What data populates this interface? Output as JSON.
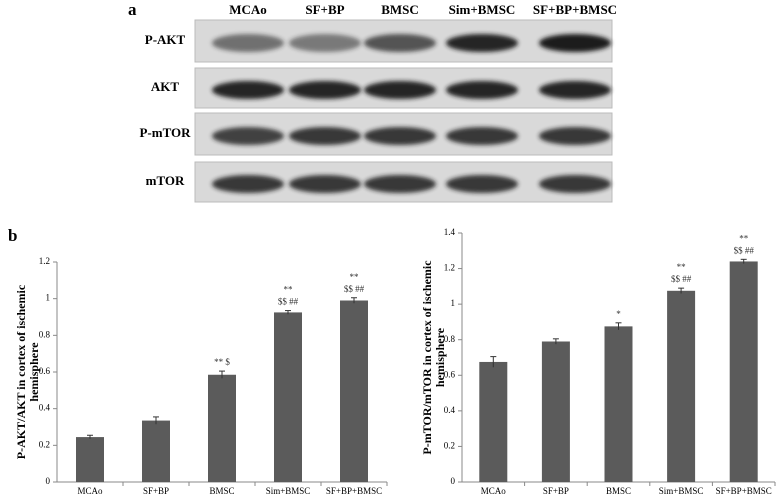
{
  "blot": {
    "panel_label": "a",
    "lanes": [
      "MCAo",
      "SF+BP",
      "BMSC",
      "Sim+BMSC",
      "SF+BP+BMSC"
    ],
    "rows": [
      "P-AKT",
      "AKT",
      "P-mTOR",
      "mTOR"
    ]
  },
  "chart_data": [
    {
      "type": "bar",
      "panel_label": "b",
      "y_label": [
        "P-AKT/AKT in cortex of  ischemic",
        "hemisphere"
      ],
      "categories": [
        "MCAo",
        "SF+BP",
        "BMSC",
        "Sim+BMSC",
        "SF+BP+BMSC"
      ],
      "values": [
        0.245,
        0.335,
        0.585,
        0.925,
        0.99
      ],
      "errors": [
        0.01,
        0.02,
        0.02,
        0.01,
        0.015
      ],
      "annotations": [
        null,
        null,
        [
          "** $"
        ],
        [
          "**",
          "$$ ##"
        ],
        [
          "**",
          "$$ ##"
        ]
      ],
      "color": "#5b5b5b",
      "ylim": [
        0,
        1.2
      ],
      "yticks": [
        0,
        0.2,
        0.4,
        0.6,
        0.8,
        1,
        1.2
      ],
      "grid": false
    },
    {
      "type": "bar",
      "y_label": [
        "P-mTOR/mTOR  in cortex of ischemic",
        "hemisphere"
      ],
      "categories": [
        "MCAo",
        "SF+BP",
        "BMSC",
        "Sim+BMSC",
        "SF+BP+BMSC"
      ],
      "values": [
        0.675,
        0.79,
        0.875,
        1.075,
        1.24
      ],
      "errors": [
        0.03,
        0.015,
        0.02,
        0.015,
        0.012
      ],
      "annotations": [
        null,
        null,
        [
          "*"
        ],
        [
          "**",
          "$$ ##"
        ],
        [
          "**",
          "$$ ##"
        ]
      ],
      "color": "#5b5b5b",
      "ylim": [
        0,
        1.4
      ],
      "yticks": [
        0,
        0.2,
        0.4,
        0.6,
        0.8,
        1,
        1.2,
        1.4
      ],
      "grid": false
    }
  ]
}
